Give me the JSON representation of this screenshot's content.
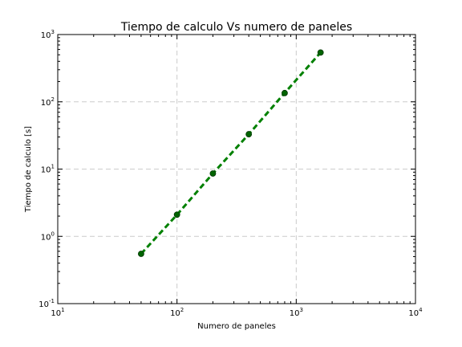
{
  "chart_data": {
    "type": "line",
    "title": "Tiempo de calculo Vs numero de paneles",
    "xlabel": "Numero de paneles",
    "ylabel": "Tiempo de calculo [s]",
    "xscale": "log",
    "yscale": "log",
    "xlim": [
      10,
      10000
    ],
    "ylim": [
      0.1,
      1000
    ],
    "grid": true,
    "x_ticks": [
      {
        "base": "10",
        "exp": "1",
        "value": 10
      },
      {
        "base": "10",
        "exp": "2",
        "value": 100
      },
      {
        "base": "10",
        "exp": "3",
        "value": 1000
      },
      {
        "base": "10",
        "exp": "4",
        "value": 10000
      }
    ],
    "y_ticks": [
      {
        "base": "10",
        "exp": "-1",
        "value": 0.1
      },
      {
        "base": "10",
        "exp": "0",
        "value": 1
      },
      {
        "base": "10",
        "exp": "1",
        "value": 10
      },
      {
        "base": "10",
        "exp": "2",
        "value": 100
      },
      {
        "base": "10",
        "exp": "3",
        "value": 1000
      }
    ],
    "series": [
      {
        "color": "#006400",
        "line_color": "#008000",
        "line_style": "dashed",
        "x": [
          50,
          100,
          200,
          400,
          800,
          1600
        ],
        "y": [
          0.55,
          2.1,
          8.6,
          33,
          135,
          540
        ]
      }
    ]
  }
}
